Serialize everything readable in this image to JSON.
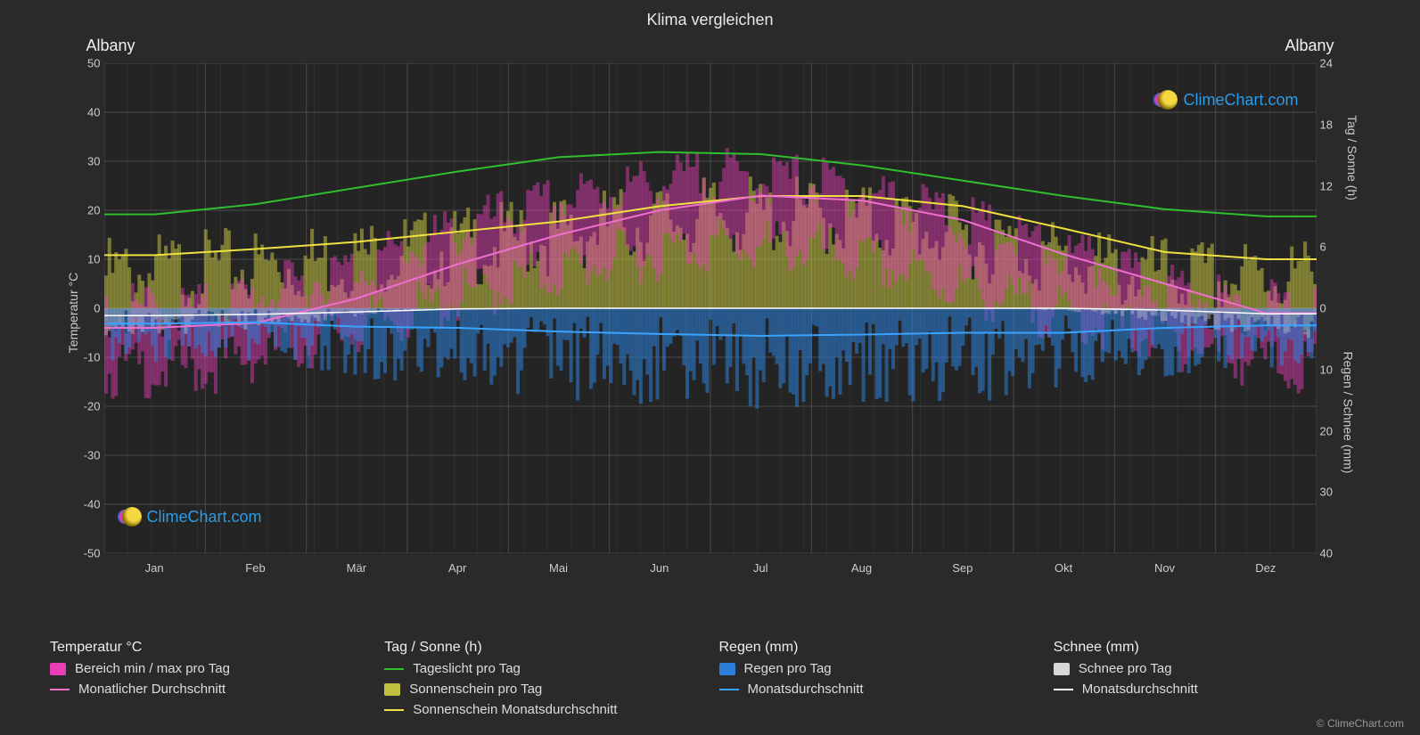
{
  "title": "Klima vergleichen",
  "location_left": "Albany",
  "location_right": "Albany",
  "axis_left_label": "Temperatur °C",
  "axis_right_label_top": "Tag / Sonne (h)",
  "axis_right_label_bottom": "Regen / Schnee (mm)",
  "watermark_text": "ClimeChart.com",
  "copyright": "© ClimeChart.com",
  "months": [
    "Jan",
    "Feb",
    "Mär",
    "Apr",
    "Mai",
    "Jun",
    "Jul",
    "Aug",
    "Sep",
    "Okt",
    "Nov",
    "Dez"
  ],
  "y_left": {
    "min": -50,
    "max": 50,
    "ticks": [
      -50,
      -40,
      -30,
      -20,
      -10,
      0,
      10,
      20,
      30,
      40,
      50
    ]
  },
  "y_right_top": {
    "min": 0,
    "max": 24,
    "ticks": [
      0,
      6,
      12,
      18,
      24
    ],
    "maps_to_temp": [
      0,
      50
    ]
  },
  "y_right_bottom": {
    "min": 0,
    "max": 40,
    "ticks": [
      0,
      10,
      20,
      30,
      40
    ],
    "maps_to_temp": [
      0,
      -50
    ]
  },
  "colors": {
    "bg": "#2a2a2a",
    "plot_bg": "#242424",
    "grid": "#4a4a4a",
    "grid_minor": "#3a3a3a",
    "temp_range_fill": "#e83fb8",
    "temp_avg_line": "#ef6fd0",
    "daylight_line": "#2fbf2f",
    "sunshine_fill": "#c0c040",
    "sunshine_line": "#f0e040",
    "rain_fill": "#2b7fd8",
    "rain_line": "#3aa3ff",
    "snow_fill": "#d8d8d8",
    "snow_line": "#ffffff",
    "watermark": "#2b9be8"
  },
  "series": {
    "daylight_h": [
      9.2,
      10.2,
      11.8,
      13.4,
      14.8,
      15.3,
      15.1,
      14.0,
      12.5,
      11.0,
      9.7,
      9.0
    ],
    "sunshine_h": [
      5.2,
      5.8,
      6.5,
      7.5,
      8.5,
      10.0,
      11.0,
      11.0,
      10.0,
      7.8,
      5.5,
      4.8
    ],
    "temp_avg_c": [
      -4,
      -3,
      2,
      9,
      15,
      20,
      23,
      22,
      18,
      11,
      5,
      -1
    ],
    "temp_min_c": [
      -10,
      -9,
      -4,
      2,
      8,
      13,
      16,
      15,
      10,
      4,
      -1,
      -6
    ],
    "temp_max_c": [
      2,
      3,
      8,
      15,
      22,
      27,
      30,
      29,
      24,
      17,
      10,
      4
    ],
    "rain_mm": [
      2.5,
      2.3,
      3.0,
      3.2,
      3.8,
      4.2,
      4.5,
      4.3,
      4.0,
      4.0,
      3.2,
      2.8
    ],
    "snow_mm": [
      1.2,
      1.0,
      0.6,
      0.1,
      0,
      0,
      0,
      0,
      0,
      0,
      0.3,
      0.9
    ]
  },
  "legend": {
    "temp_title": "Temperatur °C",
    "temp_range": "Bereich min / max pro Tag",
    "temp_avg": "Monatlicher Durchschnitt",
    "sun_title": "Tag / Sonne (h)",
    "daylight": "Tageslicht pro Tag",
    "sunshine_day": "Sonnenschein pro Tag",
    "sunshine_avg": "Sonnenschein Monatsdurchschnitt",
    "rain_title": "Regen (mm)",
    "rain_day": "Regen pro Tag",
    "rain_avg": "Monatsdurchschnitt",
    "snow_title": "Schnee (mm)",
    "snow_day": "Schnee pro Tag",
    "snow_avg": "Monatsdurchschnitt"
  }
}
